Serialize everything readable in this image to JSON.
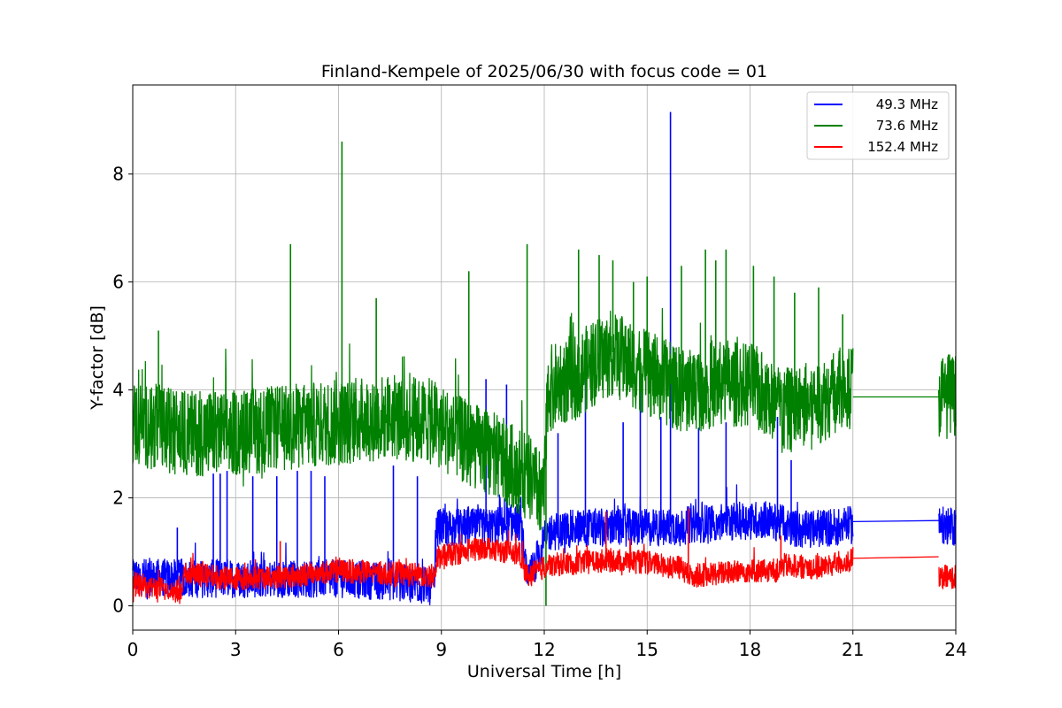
{
  "chart_data": {
    "type": "line",
    "title": "Finland-Kempele of 2025/06/30 with focus code = 01",
    "xlabel": "Universal Time [h]",
    "ylabel": "Y-factor [dB]",
    "xlim": [
      0,
      24
    ],
    "ylim": [
      -0.45,
      9.65
    ],
    "xticks": [
      0,
      3,
      6,
      9,
      12,
      15,
      18,
      21,
      24
    ],
    "yticks": [
      0,
      2,
      4,
      6,
      8
    ],
    "grid": true,
    "legend_position": "top-right",
    "series": [
      {
        "name": "49.3 MHz",
        "color": "#0000ff",
        "segments": [
          {
            "x": [
              0,
              1.5,
              3,
              4.5,
              6,
              7.5,
              8.8,
              8.85,
              10.3,
              11.3,
              11.5,
              12.1,
              13,
              14.5,
              15.5,
              17,
              18.5,
              19.5,
              21
            ],
            "y": [
              0.55,
              0.5,
              0.5,
              0.5,
              0.5,
              0.45,
              0.35,
              1.45,
              1.45,
              1.55,
              0.45,
              1.35,
              1.45,
              1.45,
              1.45,
              1.55,
              1.6,
              1.4,
              1.5
            ]
          },
          {
            "x": [
              21,
              23.5
            ],
            "y": [
              1.56,
              1.58
            ]
          },
          {
            "x": [
              23.5,
              24
            ],
            "y": [
              1.5,
              1.45
            ]
          }
        ],
        "noise_amp": 0.35,
        "spikes": [
          {
            "x": 1.3,
            "y": 1.45
          },
          {
            "x": 2.35,
            "y": 2.45
          },
          {
            "x": 2.55,
            "y": 2.45
          },
          {
            "x": 2.75,
            "y": 2.5
          },
          {
            "x": 3.5,
            "y": 2.4
          },
          {
            "x": 4.2,
            "y": 2.4
          },
          {
            "x": 4.8,
            "y": 2.5
          },
          {
            "x": 5.2,
            "y": 2.5
          },
          {
            "x": 5.6,
            "y": 2.4
          },
          {
            "x": 7.6,
            "y": 2.6
          },
          {
            "x": 8.3,
            "y": 2.4
          },
          {
            "x": 10.3,
            "y": 4.2
          },
          {
            "x": 10.9,
            "y": 4.1
          },
          {
            "x": 12.4,
            "y": 3.2
          },
          {
            "x": 13.2,
            "y": 4.4
          },
          {
            "x": 14.3,
            "y": 3.4
          },
          {
            "x": 14.8,
            "y": 4.1
          },
          {
            "x": 15.4,
            "y": 3.5
          },
          {
            "x": 15.68,
            "y": 9.15
          },
          {
            "x": 16.5,
            "y": 3.3
          },
          {
            "x": 17.3,
            "y": 3.4
          },
          {
            "x": 18.8,
            "y": 3.5
          },
          {
            "x": 19.2,
            "y": 2.7
          }
        ]
      },
      {
        "name": "73.6 MHz",
        "color": "#008000",
        "segments": [
          {
            "x": [
              0,
              1.5,
              3,
              4.5,
              6,
              7.5,
              8.8,
              9.5,
              10.5,
              11.5,
              12.0,
              12.1,
              13,
              14,
              15,
              16,
              17,
              18,
              19,
              20,
              21
            ],
            "y": [
              3.4,
              3.2,
              3.2,
              3.3,
              3.4,
              3.5,
              3.4,
              3.1,
              2.8,
              2.4,
              2.0,
              4.0,
              4.3,
              4.7,
              4.3,
              4.0,
              4.1,
              4.1,
              3.6,
              3.8,
              4.1
            ]
          },
          {
            "x": [
              21,
              23.5
            ],
            "y": [
              3.87,
              3.87
            ]
          },
          {
            "x": [
              23.5,
              24
            ],
            "y": [
              3.9,
              3.9
            ]
          }
        ],
        "noise_amp": 0.8,
        "spikes": [
          {
            "x": 0.75,
            "y": 5.1
          },
          {
            "x": 4.6,
            "y": 6.7
          },
          {
            "x": 6.1,
            "y": 8.6
          },
          {
            "x": 7.1,
            "y": 5.7
          },
          {
            "x": 9.8,
            "y": 6.2
          },
          {
            "x": 11.5,
            "y": 6.7
          },
          {
            "x": 13.0,
            "y": 6.6
          },
          {
            "x": 13.6,
            "y": 6.5
          },
          {
            "x": 14.0,
            "y": 6.4
          },
          {
            "x": 14.6,
            "y": 6.0
          },
          {
            "x": 15.0,
            "y": 6.1
          },
          {
            "x": 16.0,
            "y": 6.3
          },
          {
            "x": 16.7,
            "y": 6.6
          },
          {
            "x": 17.0,
            "y": 6.4
          },
          {
            "x": 17.3,
            "y": 6.6
          },
          {
            "x": 18.1,
            "y": 6.3
          },
          {
            "x": 18.7,
            "y": 6.1
          },
          {
            "x": 19.3,
            "y": 5.8
          },
          {
            "x": 20.0,
            "y": 5.9
          },
          {
            "x": 20.7,
            "y": 5.4
          },
          {
            "x": 12.05,
            "y": 0.0
          }
        ]
      },
      {
        "name": "152.4 MHz",
        "color": "#ff0000",
        "segments": [
          {
            "x": [
              0,
              0.5,
              1.0,
              1.45,
              1.5,
              3,
              4.5,
              6,
              7.5,
              8.8,
              8.9,
              10.3,
              11.3,
              11.5,
              12.1,
              13,
              14,
              15,
              16,
              16.2,
              17,
              18,
              18.8,
              19,
              20,
              21
            ],
            "y": [
              0.4,
              0.35,
              0.3,
              0.25,
              0.6,
              0.5,
              0.55,
              0.65,
              0.6,
              0.55,
              0.9,
              1.1,
              0.95,
              0.55,
              0.75,
              0.8,
              0.85,
              0.8,
              0.7,
              0.55,
              0.6,
              0.65,
              0.65,
              0.75,
              0.7,
              0.85
            ]
          },
          {
            "x": [
              21,
              23.5
            ],
            "y": [
              0.88,
              0.91
            ]
          },
          {
            "x": [
              23.5,
              24
            ],
            "y": [
              0.5,
              0.55
            ]
          }
        ],
        "noise_amp": 0.22,
        "spikes": [
          {
            "x": 4.3,
            "y": 1.2
          },
          {
            "x": 13.8,
            "y": 1.75
          },
          {
            "x": 14.5,
            "y": 1.25
          },
          {
            "x": 16.2,
            "y": 1.8
          },
          {
            "x": 18.9,
            "y": 1.3
          }
        ]
      }
    ]
  }
}
